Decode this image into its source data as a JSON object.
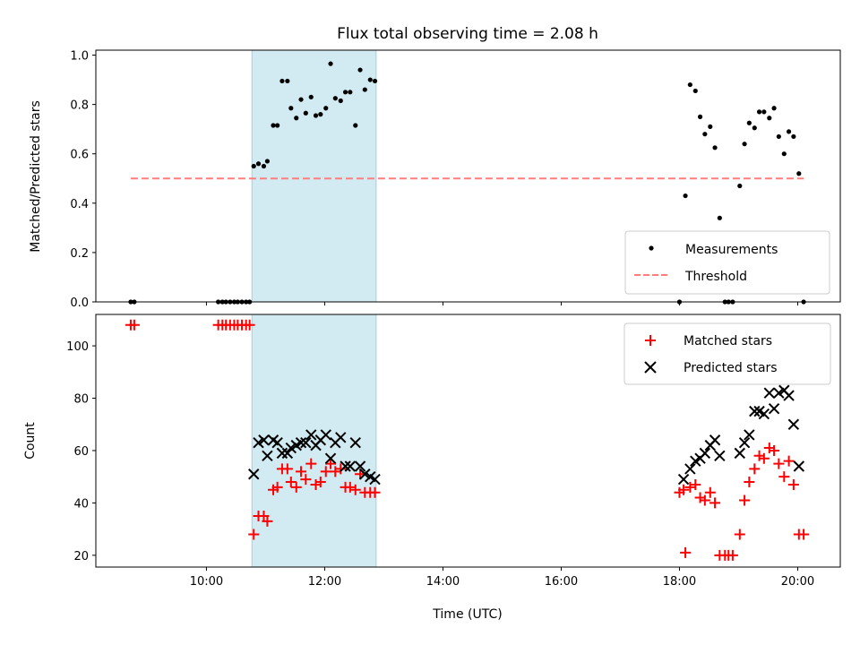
{
  "chart_data": {
    "title": "Flux total observing time = 2.08 h",
    "xlabel": "Time (UTC)",
    "x_unit": "hours UTC",
    "xlim": [
      8.13,
      20.72
    ],
    "xticks": [
      {
        "value": 10,
        "label": "10:00"
      },
      {
        "value": 12,
        "label": "12:00"
      },
      {
        "value": 14,
        "label": "14:00"
      },
      {
        "value": 16,
        "label": "16:00"
      },
      {
        "value": 18,
        "label": "18:00"
      },
      {
        "value": 20,
        "label": "20:00"
      }
    ],
    "shaded_interval": {
      "start": 10.77,
      "end": 12.87,
      "color": "#add8e6"
    },
    "panels": [
      {
        "type": "scatter",
        "ylabel": "Matched/Predicted stars",
        "ylim": [
          0,
          1.02
        ],
        "yticks": [
          {
            "value": 0,
            "label": "0.0"
          },
          {
            "value": 0.2,
            "label": "0.2"
          },
          {
            "value": 0.4,
            "label": "0.4"
          },
          {
            "value": 0.6,
            "label": "0.6"
          },
          {
            "value": 0.8,
            "label": "0.8"
          },
          {
            "value": 1.0,
            "label": "1.0"
          }
        ],
        "legend_position": "lower-right",
        "series": [
          {
            "name": "Measurements",
            "kind": "dot",
            "color": "#000000",
            "points": [
              [
                8.72,
                0
              ],
              [
                8.78,
                0
              ],
              [
                10.2,
                0
              ],
              [
                10.27,
                0
              ],
              [
                10.33,
                0
              ],
              [
                10.4,
                0
              ],
              [
                10.47,
                0
              ],
              [
                10.53,
                0
              ],
              [
                10.6,
                0
              ],
              [
                10.67,
                0
              ],
              [
                10.73,
                0
              ],
              [
                10.8,
                0.55
              ],
              [
                10.88,
                0.56
              ],
              [
                10.97,
                0.55
              ],
              [
                11.03,
                0.57
              ],
              [
                11.13,
                0.715
              ],
              [
                11.2,
                0.715
              ],
              [
                11.28,
                0.895
              ],
              [
                11.37,
                0.895
              ],
              [
                11.43,
                0.785
              ],
              [
                11.52,
                0.745
              ],
              [
                11.6,
                0.82
              ],
              [
                11.68,
                0.765
              ],
              [
                11.77,
                0.83
              ],
              [
                11.85,
                0.755
              ],
              [
                11.93,
                0.76
              ],
              [
                12.02,
                0.785
              ],
              [
                12.1,
                0.965
              ],
              [
                12.18,
                0.825
              ],
              [
                12.27,
                0.815
              ],
              [
                12.35,
                0.85
              ],
              [
                12.43,
                0.85
              ],
              [
                12.52,
                0.715
              ],
              [
                12.6,
                0.94
              ],
              [
                12.68,
                0.86
              ],
              [
                12.77,
                0.9
              ],
              [
                12.85,
                0.895
              ],
              [
                18.0,
                0
              ],
              [
                18.1,
                0.43
              ],
              [
                18.18,
                0.88
              ],
              [
                18.27,
                0.855
              ],
              [
                18.35,
                0.75
              ],
              [
                18.43,
                0.68
              ],
              [
                18.52,
                0.71
              ],
              [
                18.6,
                0.625
              ],
              [
                18.68,
                0.34
              ],
              [
                18.77,
                0
              ],
              [
                18.83,
                0
              ],
              [
                18.9,
                0
              ],
              [
                19.02,
                0.47
              ],
              [
                19.1,
                0.64
              ],
              [
                19.18,
                0.725
              ],
              [
                19.27,
                0.705
              ],
              [
                19.35,
                0.77
              ],
              [
                19.43,
                0.77
              ],
              [
                19.52,
                0.745
              ],
              [
                19.6,
                0.785
              ],
              [
                19.68,
                0.67
              ],
              [
                19.77,
                0.6
              ],
              [
                19.85,
                0.69
              ],
              [
                19.93,
                0.67
              ],
              [
                20.02,
                0.52
              ],
              [
                20.1,
                0
              ]
            ]
          },
          {
            "name": "Threshold",
            "kind": "dashed-line",
            "color": "#ff7f7f",
            "points": [
              [
                8.72,
                0.5
              ],
              [
                20.1,
                0.5
              ]
            ]
          }
        ]
      },
      {
        "type": "scatter",
        "ylabel": "Count",
        "ylim": [
          15.5,
          112
        ],
        "yticks": [
          {
            "value": 20,
            "label": "20"
          },
          {
            "value": 40,
            "label": "40"
          },
          {
            "value": 60,
            "label": "60"
          },
          {
            "value": 80,
            "label": "80"
          },
          {
            "value": 100,
            "label": "100"
          }
        ],
        "legend_position": "upper-right",
        "series": [
          {
            "name": "Matched stars",
            "kind": "plus",
            "color": "#ff0000",
            "points": [
              [
                8.72,
                108
              ],
              [
                8.78,
                108
              ],
              [
                10.2,
                108
              ],
              [
                10.27,
                108
              ],
              [
                10.33,
                108
              ],
              [
                10.4,
                108
              ],
              [
                10.47,
                108
              ],
              [
                10.53,
                108
              ],
              [
                10.6,
                108
              ],
              [
                10.67,
                108
              ],
              [
                10.73,
                108
              ],
              [
                10.8,
                28
              ],
              [
                10.88,
                35
              ],
              [
                10.97,
                35
              ],
              [
                11.03,
                33
              ],
              [
                11.13,
                45
              ],
              [
                11.2,
                46
              ],
              [
                11.28,
                53
              ],
              [
                11.37,
                53
              ],
              [
                11.43,
                48
              ],
              [
                11.52,
                46
              ],
              [
                11.6,
                52
              ],
              [
                11.68,
                49
              ],
              [
                11.77,
                55
              ],
              [
                11.85,
                47
              ],
              [
                11.93,
                48
              ],
              [
                12.02,
                52
              ],
              [
                12.1,
                55
              ],
              [
                12.18,
                52
              ],
              [
                12.27,
                53
              ],
              [
                12.35,
                46
              ],
              [
                12.43,
                46
              ],
              [
                12.52,
                45
              ],
              [
                12.6,
                51
              ],
              [
                12.68,
                44
              ],
              [
                12.77,
                44
              ],
              [
                12.85,
                44
              ],
              [
                18.0,
                44
              ],
              [
                18.07,
                45
              ],
              [
                18.1,
                21
              ],
              [
                18.18,
                46
              ],
              [
                18.27,
                47
              ],
              [
                18.35,
                42
              ],
              [
                18.43,
                41
              ],
              [
                18.52,
                44
              ],
              [
                18.6,
                40
              ],
              [
                18.68,
                20
              ],
              [
                18.77,
                20
              ],
              [
                18.83,
                20
              ],
              [
                18.9,
                20
              ],
              [
                19.02,
                28
              ],
              [
                19.1,
                41
              ],
              [
                19.18,
                48
              ],
              [
                19.27,
                53
              ],
              [
                19.35,
                58
              ],
              [
                19.43,
                57
              ],
              [
                19.52,
                61
              ],
              [
                19.6,
                60
              ],
              [
                19.68,
                55
              ],
              [
                19.77,
                50
              ],
              [
                19.85,
                56
              ],
              [
                19.93,
                47
              ],
              [
                20.02,
                28
              ],
              [
                20.1,
                28
              ]
            ]
          },
          {
            "name": "Predicted stars",
            "kind": "x",
            "color": "#000000",
            "points": [
              [
                10.8,
                51
              ],
              [
                10.88,
                63
              ],
              [
                10.97,
                64
              ],
              [
                11.03,
                58
              ],
              [
                11.13,
                64
              ],
              [
                11.2,
                63
              ],
              [
                11.28,
                59
              ],
              [
                11.37,
                59
              ],
              [
                11.43,
                61
              ],
              [
                11.52,
                62
              ],
              [
                11.6,
                63
              ],
              [
                11.68,
                63
              ],
              [
                11.77,
                66
              ],
              [
                11.85,
                62
              ],
              [
                11.93,
                64
              ],
              [
                12.02,
                66
              ],
              [
                12.1,
                57
              ],
              [
                12.18,
                63
              ],
              [
                12.27,
                65
              ],
              [
                12.35,
                54
              ],
              [
                12.43,
                54
              ],
              [
                12.52,
                63
              ],
              [
                12.6,
                54
              ],
              [
                12.68,
                51
              ],
              [
                12.77,
                50
              ],
              [
                12.85,
                49
              ],
              [
                18.07,
                49
              ],
              [
                18.18,
                53
              ],
              [
                18.27,
                56
              ],
              [
                18.35,
                57
              ],
              [
                18.43,
                59
              ],
              [
                18.52,
                62
              ],
              [
                18.6,
                64
              ],
              [
                18.68,
                58
              ],
              [
                19.02,
                59
              ],
              [
                19.1,
                63
              ],
              [
                19.18,
                66
              ],
              [
                19.27,
                75
              ],
              [
                19.35,
                75
              ],
              [
                19.43,
                74
              ],
              [
                19.52,
                82
              ],
              [
                19.6,
                76
              ],
              [
                19.68,
                82
              ],
              [
                19.77,
                83
              ],
              [
                19.85,
                81
              ],
              [
                19.93,
                70
              ],
              [
                20.02,
                54
              ]
            ]
          }
        ]
      }
    ]
  }
}
